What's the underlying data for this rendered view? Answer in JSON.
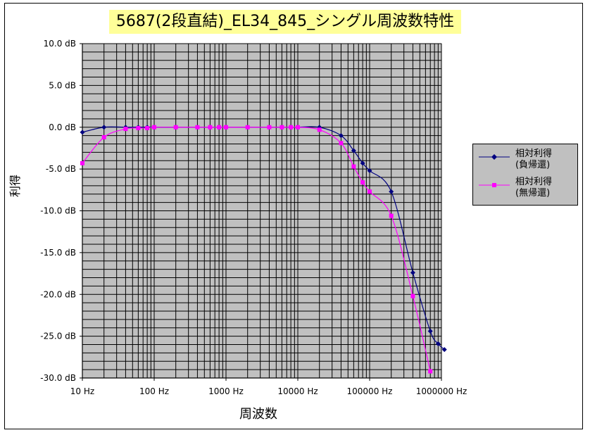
{
  "chart_data": {
    "type": "line",
    "title": "5687(2段直結)_EL34_845_シングル周波数特性",
    "xlabel": "周波数",
    "ylabel": "利得",
    "x_scale": "log",
    "xlim": [
      10,
      1000000
    ],
    "ylim": [
      -30,
      10
    ],
    "x_ticks": [
      "10 Hz",
      "100 Hz",
      "1000 Hz",
      "10000 Hz",
      "100000 Hz",
      "1000000 Hz"
    ],
    "x_tick_values": [
      10,
      100,
      1000,
      10000,
      100000,
      1000000
    ],
    "y_ticks": [
      "10.0 dB",
      "5.0 dB",
      "0.0 dB",
      "-5.0 dB",
      "-10.0 dB",
      "-15.0 dB",
      "-20.0 dB",
      "-25.0 dB",
      "-30.0 dB"
    ],
    "y_tick_values": [
      10,
      5,
      0,
      -5,
      -10,
      -15,
      -20,
      -25,
      -30
    ],
    "grid": true,
    "plot_background": "#c0c0c0",
    "legend_position": "right",
    "series": [
      {
        "name": "相対利得\n(負帰還)",
        "color": "#000080",
        "marker": "diamond",
        "x": [
          10,
          20,
          40,
          60,
          80,
          100,
          200,
          400,
          600,
          800,
          1000,
          2000,
          4000,
          6000,
          8000,
          10000,
          20000,
          40000,
          60000,
          80000,
          100000,
          200000,
          400000,
          700000,
          900000,
          1100000
        ],
        "y": [
          -0.6,
          0.0,
          0.0,
          0.0,
          0.0,
          0.0,
          0.0,
          0.0,
          0.0,
          0.0,
          0.0,
          0.0,
          0.0,
          0.0,
          0.0,
          0.0,
          0.0,
          -1.0,
          -2.8,
          -4.3,
          -5.2,
          -7.7,
          -17.4,
          -24.4,
          -25.9,
          -26.6
        ]
      },
      {
        "name": "相対利得\n(無帰還)",
        "color": "#ff00ff",
        "marker": "square",
        "x": [
          10,
          20,
          40,
          60,
          80,
          100,
          200,
          400,
          600,
          800,
          1000,
          2000,
          4000,
          6000,
          8000,
          10000,
          20000,
          40000,
          60000,
          80000,
          100000,
          200000,
          400000,
          700000
        ],
        "y": [
          -4.3,
          -1.2,
          -0.2,
          -0.1,
          -0.1,
          0.0,
          0.0,
          0.0,
          0.0,
          0.0,
          0.0,
          0.0,
          0.0,
          0.0,
          0.0,
          0.0,
          -0.3,
          -1.9,
          -4.7,
          -6.6,
          -7.7,
          -10.6,
          -20.2,
          -29.2
        ]
      }
    ]
  }
}
